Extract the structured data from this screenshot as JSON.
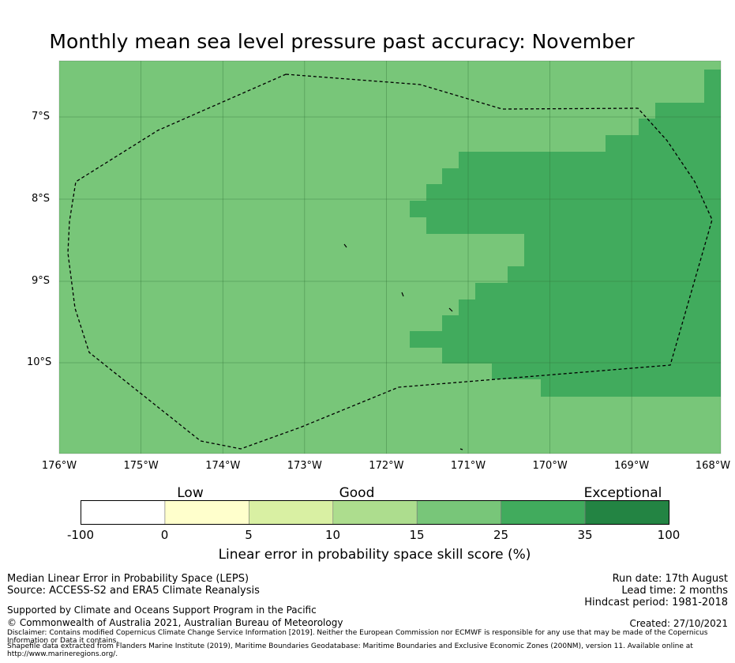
{
  "title": "Monthly mean sea level pressure past accuracy: November",
  "map": {
    "lat_ticks": [
      "7°S",
      "8°S",
      "9°S",
      "10°S"
    ],
    "lon_ticks": [
      "176°W",
      "175°W",
      "174°W",
      "173°W",
      "172°W",
      "171°W",
      "170°W",
      "169°W",
      "168°W"
    ],
    "lon_range": [
      -176,
      -168
    ],
    "lat_range": [
      -11.1,
      -6.3
    ],
    "base_color": "#78c679",
    "high_color": "#41ab5d",
    "eez_line_style": "dashed black"
  },
  "colorbar": {
    "categories": [
      "Low",
      "Good",
      "Exceptional"
    ],
    "ticks": [
      "-100",
      "0",
      "5",
      "10",
      "15",
      "25",
      "35",
      "100"
    ],
    "colors": [
      "#ffffff",
      "#ffffcc",
      "#d9f0a3",
      "#addd8e",
      "#78c679",
      "#41ab5d",
      "#238443"
    ],
    "label": "Linear error in probability space skill score (%)"
  },
  "footer": {
    "line1": "Median Linear Error in Probability Space (LEPS)",
    "line2": "Source: ACCESS-S2 and ERA5 Climate Reanalysis",
    "support": "Supported by Climate and Oceans Support Program in the Pacific",
    "copyright": "© Commonwealth of Australia 2021, Australian Bureau of Meteorology",
    "disclaimer": "Disclaimer: Contains modified Copernicus Climate Change Service Information [2019]. Neither the European Commission nor ECMWF is responsible for any use that may be made of the Copernicus Information or Data it contains.",
    "shapefile": "Shapefile data extracted from Flanders Marine Institute (2019), Maritime Boundaries Geodatabase: Maritime Boundaries and Exclusive Economic Zones (200NM), version 11. Available online at http://www.marineregions.org/.",
    "run_date": "Run date: 17th August",
    "lead_time": "Lead time: 2 months",
    "hindcast": "Hindcast period: 1981-2018",
    "created": "Created: 27/10/2021"
  }
}
